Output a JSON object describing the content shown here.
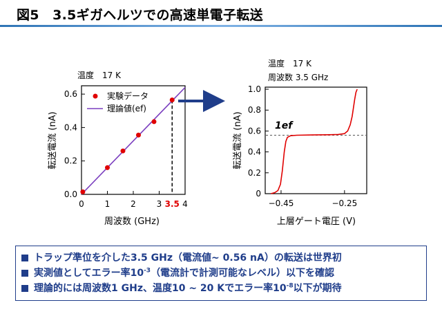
{
  "title": "図5　3.5ギガヘルツでの高速単電子転送",
  "colors": {
    "accent_blue": "#1f3d8a",
    "rule_blue": "#2e74b5",
    "data_red": "#e00000",
    "theory_purple": "#7b3fbf"
  },
  "chart_data": [
    {
      "type": "scatter",
      "condition_label": "温度　17 K",
      "xlabel": "周波数 (GHz)",
      "ylabel": "転送電流 (nA)",
      "xlim": [
        0,
        4
      ],
      "ylim": [
        0,
        0.65
      ],
      "xticks": [
        "0",
        "1",
        "2",
        "3",
        "4"
      ],
      "yticks": [
        "0.0",
        "0.2",
        "0.4",
        "0.6"
      ],
      "highlight_label": "3.5",
      "highlight_x": 3.5,
      "series": [
        {
          "name": "実験データ",
          "x": [
            0.05,
            1.0,
            1.6,
            2.2,
            2.8,
            3.5
          ],
          "y": [
            0.015,
            0.16,
            0.26,
            0.355,
            0.435,
            0.565
          ],
          "color": "#e00000"
        },
        {
          "name": "理論値(ef)",
          "x": [
            0,
            4
          ],
          "y": [
            0,
            0.64
          ],
          "color": "#7b3fbf"
        }
      ],
      "legend_position": "top-left"
    },
    {
      "type": "line",
      "condition_label_1": "温度　17 K",
      "condition_label_2": "周波数 3.5 GHz",
      "xlabel": "上層ゲート電圧 (V)",
      "ylabel": "転送電流 (nA)",
      "xlim": [
        -0.5,
        -0.18
      ],
      "ylim": [
        0,
        1.02
      ],
      "xticks": [
        "−0.45",
        "−0.25"
      ],
      "xtick_values": [
        -0.45,
        -0.25
      ],
      "yticks": [
        "0",
        "0.2",
        "0.4",
        "0.6",
        "0.8",
        "1.0"
      ],
      "annotation": "1ef",
      "ef_level": 0.56,
      "series": [
        {
          "name": "",
          "color": "#e00000",
          "x": [
            -0.482,
            -0.47,
            -0.46,
            -0.452,
            -0.446,
            -0.44,
            -0.435,
            -0.43,
            -0.42,
            -0.4,
            -0.35,
            -0.3,
            -0.27,
            -0.25,
            -0.24,
            -0.232,
            -0.226,
            -0.222,
            -0.218,
            -0.214,
            -0.21
          ],
          "y": [
            0.0,
            0.01,
            0.03,
            0.09,
            0.22,
            0.4,
            0.5,
            0.54,
            0.555,
            0.56,
            0.562,
            0.564,
            0.567,
            0.575,
            0.6,
            0.66,
            0.74,
            0.82,
            0.9,
            0.97,
            1.0
          ]
        }
      ]
    }
  ],
  "notes": [
    {
      "pre": "トラップ準位を介した3.5 GHz（電流値~ 0.56 nA）の転送は世界初",
      "sup": "",
      "post": ""
    },
    {
      "pre": "実測値としてエラー率10",
      "sup": "-3",
      "post": "（電流計で計測可能なレベル）以下を確認"
    },
    {
      "pre": "理論的には周波数1 GHz、温度10 ~ 20 Kでエラー率10",
      "sup": "-8",
      "post": "以下が期待"
    }
  ]
}
